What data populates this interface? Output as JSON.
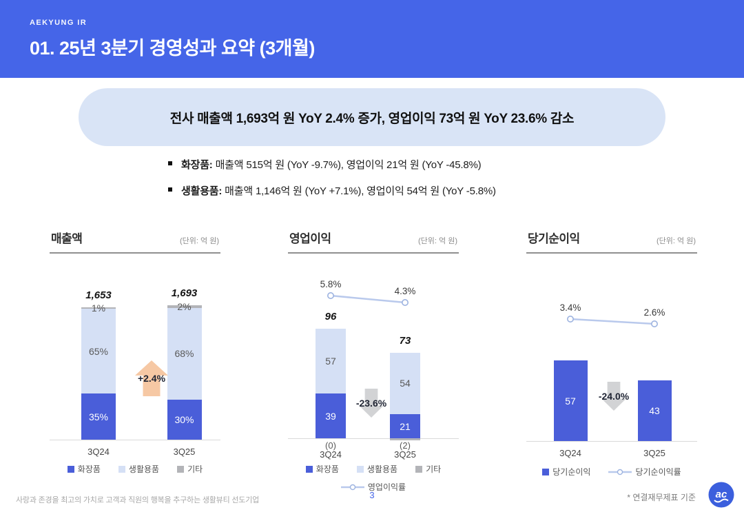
{
  "header": {
    "brand": "AEKYUNG IR",
    "title": "01. 25년 3분기 경영성과 요약 (3개월)"
  },
  "summary": {
    "headline": "전사 매출액 1,693억 원 YoY 2.4% 증가, 영업이익 73억 원 YoY 23.6% 감소",
    "bullets": [
      {
        "label": "화장품:",
        "text": " 매출액 515억 원 (YoY -9.7%), 영업이익 21억 원 (YoY -45.8%)"
      },
      {
        "label": "생활용품:",
        "text": " 매출액 1,146억 원 (YoY +7.1%), 영업이익 54억 원 (YoY -5.8%)"
      }
    ]
  },
  "theme": {
    "banner_blue": "#4565e8",
    "pill_bg": "#d9e4f6",
    "bar_blue": "#4a5ed9",
    "bar_light_blue": "#d5e0f5",
    "bar_gray": "#b3b4b8",
    "line_color": "#b9c9ec",
    "marker_stroke": "#9db3e0",
    "up_arrow": "#f6c8a4",
    "down_arrow": "#d2d3d5",
    "logo_blue": "#3b5fdd"
  },
  "chart_data": [
    {
      "type": "bar",
      "variant": "stacked-percent",
      "title": "매출액",
      "unit_label": "(단위: 억 원)",
      "categories": [
        "3Q24",
        "3Q25"
      ],
      "totals": [
        1653,
        1693
      ],
      "total_labels": [
        "1,653",
        "1,693"
      ],
      "values_unit": "percent_of_total",
      "series": [
        {
          "name": "화장품",
          "role": "blue",
          "values": [
            35,
            30
          ],
          "labels": [
            "35%",
            "30%"
          ]
        },
        {
          "name": "생활용품",
          "role": "light",
          "values": [
            65,
            68
          ],
          "labels": [
            "65%",
            "68%"
          ]
        },
        {
          "name": "기타",
          "role": "gray",
          "values": [
            1,
            2
          ],
          "labels": [
            "1%",
            "2%"
          ]
        }
      ],
      "yoy_badge": {
        "label": "+2.4%",
        "direction": "up"
      },
      "legend": [
        "화장품",
        "생활용품",
        "기타"
      ]
    },
    {
      "type": "bar",
      "variant": "stacked-with-line",
      "title": "영업이익",
      "unit_label": "(단위: 억 원)",
      "categories": [
        "3Q24",
        "3Q25"
      ],
      "totals": [
        96,
        73
      ],
      "total_labels": [
        "96",
        "73"
      ],
      "values_unit": "억 원",
      "series": [
        {
          "name": "화장품",
          "role": "blue",
          "values": [
            39,
            21
          ],
          "labels": [
            "39",
            "21"
          ]
        },
        {
          "name": "생활용품",
          "role": "light",
          "values": [
            57,
            54
          ],
          "labels": [
            "57",
            "54"
          ]
        },
        {
          "name": "기타",
          "role": "gray",
          "values": [
            0,
            -2
          ],
          "labels": [
            "(0)",
            "(2)"
          ]
        }
      ],
      "line": {
        "name": "영업이익률",
        "values": [
          5.8,
          4.3
        ],
        "labels": [
          "5.8%",
          "4.3%"
        ]
      },
      "yoy_badge": {
        "label": "-23.6%",
        "direction": "down"
      },
      "legend": [
        "화장품",
        "생활용품",
        "기타",
        "영업이익률"
      ]
    },
    {
      "type": "bar",
      "variant": "simple-with-line",
      "title": "당기순이익",
      "unit_label": "(단위: 억 원)",
      "categories": [
        "3Q24",
        "3Q25"
      ],
      "values_unit": "억 원",
      "series": [
        {
          "name": "당기순이익",
          "role": "blue",
          "values": [
            57,
            43
          ],
          "labels": [
            "57",
            "43"
          ]
        }
      ],
      "line": {
        "name": "당기순이익률",
        "values": [
          3.4,
          2.6
        ],
        "labels": [
          "3.4%",
          "2.6%"
        ]
      },
      "yoy_badge": {
        "label": "-24.0%",
        "direction": "down"
      },
      "legend": [
        "당기순이익",
        "당기순이익률"
      ]
    }
  ],
  "footer": {
    "slogan": "사랑과 존경을 최고의 가치로 고객과 직원의 행복을 추구하는 생활뷰티 선도기업",
    "page_number": "3",
    "footnote": "* 연결재무제표 기준",
    "logo_text": "ac"
  }
}
